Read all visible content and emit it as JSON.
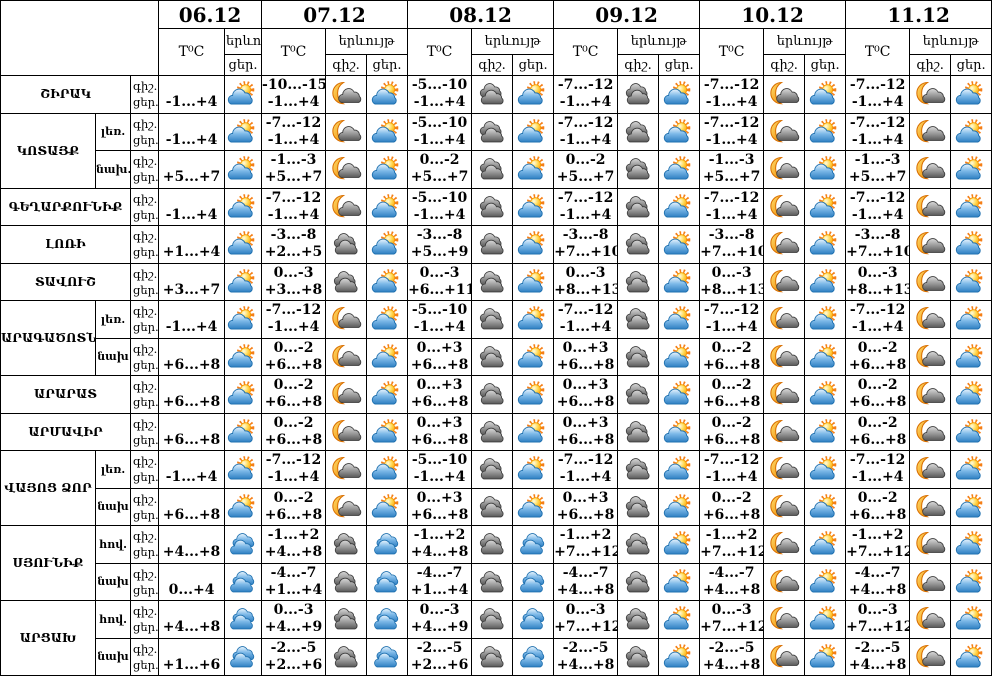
{
  "colors": {
    "border": "#000000",
    "background": "#ffffff",
    "sun": "#ffa018",
    "sun_rays": "#f57f17",
    "moon": "#f5a623",
    "cloud_blue": "#4d9bd5",
    "cloud_blue_outline": "#1d6fae",
    "cloud_gray": "#8c8c8c",
    "cloud_gray_outline": "#3a3a3a"
  },
  "icons": {
    "sun-cloud": "sun with blue cloud (partly cloudy day)",
    "moon-cloud": "crescent moon with dark cloud (partly cloudy night)",
    "clouds-gray": "two gray clouds (cloudy night)",
    "clouds-blue": "two blue clouds (cloudy day)"
  },
  "header": {
    "dates": [
      "06.12",
      "07.12",
      "08.12",
      "09.12",
      "10.12",
      "11.12"
    ],
    "temp_label": "T⁰C",
    "phenomenon_label": "երևույթ",
    "night_abbr": "գիշ.",
    "day_abbr": "ցեր."
  },
  "row_labels": {
    "night": "գիշ.",
    "day": "ցեր."
  },
  "regions": [
    {
      "name": "ՇԻՐԱԿ",
      "rows": [
        {
          "zone": null,
          "cells": [
            {
              "day_temp": "-1...+4",
              "day_icon": "sun-cloud"
            },
            {
              "night_temp": "-10...-15",
              "day_temp": "-1...+4",
              "night_icon": "moon-cloud",
              "day_icon": "sun-cloud"
            },
            {
              "night_temp": "-5...-10",
              "day_temp": "-1...+4",
              "night_icon": "clouds-gray",
              "day_icon": "sun-cloud"
            },
            {
              "night_temp": "-7...-12",
              "day_temp": "-1...+4",
              "night_icon": "clouds-gray",
              "day_icon": "sun-cloud"
            },
            {
              "night_temp": "-7...-12",
              "day_temp": "-1...+4",
              "night_icon": "moon-cloud",
              "day_icon": "sun-cloud"
            },
            {
              "night_temp": "-7...-12",
              "day_temp": "-1...+4",
              "night_icon": "moon-cloud",
              "day_icon": "sun-cloud"
            }
          ]
        }
      ]
    },
    {
      "name": "ԿՈՏԱՅՔ",
      "rows": [
        {
          "zone": "լեռ.",
          "cells": [
            {
              "day_temp": "-1...+4",
              "day_icon": "sun-cloud"
            },
            {
              "night_temp": "-7...-12",
              "day_temp": "-1...+4",
              "night_icon": "moon-cloud",
              "day_icon": "sun-cloud"
            },
            {
              "night_temp": "-5...-10",
              "day_temp": "-1...+4",
              "night_icon": "clouds-gray",
              "day_icon": "sun-cloud"
            },
            {
              "night_temp": "-7...-12",
              "day_temp": "-1...+4",
              "night_icon": "clouds-gray",
              "day_icon": "sun-cloud"
            },
            {
              "night_temp": "-7...-12",
              "day_temp": "-1...+4",
              "night_icon": "moon-cloud",
              "day_icon": "sun-cloud"
            },
            {
              "night_temp": "-7...-12",
              "day_temp": "-1...+4",
              "night_icon": "moon-cloud",
              "day_icon": "sun-cloud"
            }
          ]
        },
        {
          "zone": "նախ.",
          "cells": [
            {
              "day_temp": "+5...+7",
              "day_icon": "sun-cloud"
            },
            {
              "night_temp": "-1...-3",
              "day_temp": "+5...+7",
              "night_icon": "moon-cloud",
              "day_icon": "sun-cloud"
            },
            {
              "night_temp": "0...-2",
              "day_temp": "+5...+7",
              "night_icon": "clouds-gray",
              "day_icon": "sun-cloud"
            },
            {
              "night_temp": "0...-2",
              "day_temp": "+5...+7",
              "night_icon": "clouds-gray",
              "day_icon": "sun-cloud"
            },
            {
              "night_temp": "-1...-3",
              "day_temp": "+5...+7",
              "night_icon": "moon-cloud",
              "day_icon": "sun-cloud"
            },
            {
              "night_temp": "-1...-3",
              "day_temp": "+5...+7",
              "night_icon": "moon-cloud",
              "day_icon": "sun-cloud"
            }
          ]
        }
      ]
    },
    {
      "name": "ԳԵՂԱՐՔՈՒՆԻՔ",
      "rows": [
        {
          "zone": null,
          "cells": [
            {
              "day_temp": "-1...+4",
              "day_icon": "sun-cloud"
            },
            {
              "night_temp": "-7...-12",
              "day_temp": "-1...+4",
              "night_icon": "moon-cloud",
              "day_icon": "sun-cloud"
            },
            {
              "night_temp": "-5...-10",
              "day_temp": "-1...+4",
              "night_icon": "clouds-gray",
              "day_icon": "sun-cloud"
            },
            {
              "night_temp": "-7...-12",
              "day_temp": "-1...+4",
              "night_icon": "clouds-gray",
              "day_icon": "sun-cloud"
            },
            {
              "night_temp": "-7...-12",
              "day_temp": "-1...+4",
              "night_icon": "moon-cloud",
              "day_icon": "sun-cloud"
            },
            {
              "night_temp": "-7...-12",
              "day_temp": "-1...+4",
              "night_icon": "moon-cloud",
              "day_icon": "sun-cloud"
            }
          ]
        }
      ]
    },
    {
      "name": "ԼՈՌԻ",
      "rows": [
        {
          "zone": null,
          "cells": [
            {
              "day_temp": "+1...+4",
              "day_icon": "sun-cloud"
            },
            {
              "night_temp": "-3...-8",
              "day_temp": "+2...+5",
              "night_icon": "clouds-gray",
              "day_icon": "sun-cloud"
            },
            {
              "night_temp": "-3...-8",
              "day_temp": "+5...+9",
              "night_icon": "clouds-gray",
              "day_icon": "sun-cloud"
            },
            {
              "night_temp": "-3...-8",
              "day_temp": "+7...+10",
              "night_icon": "clouds-gray",
              "day_icon": "sun-cloud"
            },
            {
              "night_temp": "-3...-8",
              "day_temp": "+7...+10",
              "night_icon": "moon-cloud",
              "day_icon": "sun-cloud"
            },
            {
              "night_temp": "-3...-8",
              "day_temp": "+7...+10",
              "night_icon": "moon-cloud",
              "day_icon": "sun-cloud"
            }
          ]
        }
      ]
    },
    {
      "name": "ՏԱՎՈՒՇ",
      "rows": [
        {
          "zone": null,
          "cells": [
            {
              "day_temp": "+3...+7",
              "day_icon": "sun-cloud"
            },
            {
              "night_temp": "0...-3",
              "day_temp": "+3...+8",
              "night_icon": "clouds-gray",
              "day_icon": "sun-cloud"
            },
            {
              "night_temp": "0...-3",
              "day_temp": "+6...+11",
              "night_icon": "clouds-gray",
              "day_icon": "sun-cloud"
            },
            {
              "night_temp": "0...-3",
              "day_temp": "+8...+13",
              "night_icon": "clouds-gray",
              "day_icon": "sun-cloud"
            },
            {
              "night_temp": "0...-3",
              "day_temp": "+8...+13",
              "night_icon": "moon-cloud",
              "day_icon": "sun-cloud"
            },
            {
              "night_temp": "0...-3",
              "day_temp": "+8...+13",
              "night_icon": "moon-cloud",
              "day_icon": "sun-cloud"
            }
          ]
        }
      ]
    },
    {
      "name": "ԱՐԱԳԱԾՈՏՆ",
      "rows": [
        {
          "zone": "լեռ.",
          "cells": [
            {
              "day_temp": "-1...+4",
              "day_icon": "sun-cloud"
            },
            {
              "night_temp": "-7...-12",
              "day_temp": "-1...+4",
              "night_icon": "moon-cloud",
              "day_icon": "sun-cloud"
            },
            {
              "night_temp": "-5...-10",
              "day_temp": "-1...+4",
              "night_icon": "clouds-gray",
              "day_icon": "sun-cloud"
            },
            {
              "night_temp": "-7...-12",
              "day_temp": "-1...+4",
              "night_icon": "clouds-gray",
              "day_icon": "sun-cloud"
            },
            {
              "night_temp": "-7...-12",
              "day_temp": "-1...+4",
              "night_icon": "moon-cloud",
              "day_icon": "sun-cloud"
            },
            {
              "night_temp": "-7...-12",
              "day_temp": "-1...+4",
              "night_icon": "moon-cloud",
              "day_icon": "sun-cloud"
            }
          ]
        },
        {
          "zone": "նախ",
          "cells": [
            {
              "day_temp": "+6...+8",
              "day_icon": "sun-cloud"
            },
            {
              "night_temp": "0...-2",
              "day_temp": "+6...+8",
              "night_icon": "moon-cloud",
              "day_icon": "sun-cloud"
            },
            {
              "night_temp": "0...+3",
              "day_temp": "+6...+8",
              "night_icon": "clouds-gray",
              "day_icon": "sun-cloud"
            },
            {
              "night_temp": "0...+3",
              "day_temp": "+6...+8",
              "night_icon": "clouds-gray",
              "day_icon": "sun-cloud"
            },
            {
              "night_temp": "0...-2",
              "day_temp": "+6...+8",
              "night_icon": "moon-cloud",
              "day_icon": "sun-cloud"
            },
            {
              "night_temp": "0...-2",
              "day_temp": "+6...+8",
              "night_icon": "moon-cloud",
              "day_icon": "sun-cloud"
            }
          ]
        }
      ]
    },
    {
      "name": "ԱՐԱՐԱՏ",
      "rows": [
        {
          "zone": null,
          "cells": [
            {
              "day_temp": "+6...+8",
              "day_icon": "sun-cloud"
            },
            {
              "night_temp": "0...-2",
              "day_temp": "+6...+8",
              "night_icon": "moon-cloud",
              "day_icon": "sun-cloud"
            },
            {
              "night_temp": "0...+3",
              "day_temp": "+6...+8",
              "night_icon": "clouds-gray",
              "day_icon": "sun-cloud"
            },
            {
              "night_temp": "0...+3",
              "day_temp": "+6...+8",
              "night_icon": "clouds-gray",
              "day_icon": "sun-cloud"
            },
            {
              "night_temp": "0...-2",
              "day_temp": "+6...+8",
              "night_icon": "moon-cloud",
              "day_icon": "sun-cloud"
            },
            {
              "night_temp": "0...-2",
              "day_temp": "+6...+8",
              "night_icon": "moon-cloud",
              "day_icon": "sun-cloud"
            }
          ]
        }
      ]
    },
    {
      "name": "ԱՐՄԱՎԻՐ",
      "rows": [
        {
          "zone": null,
          "cells": [
            {
              "day_temp": "+6...+8",
              "day_icon": "sun-cloud"
            },
            {
              "night_temp": "0...-2",
              "day_temp": "+6...+8",
              "night_icon": "moon-cloud",
              "day_icon": "sun-cloud"
            },
            {
              "night_temp": "0...+3",
              "day_temp": "+6...+8",
              "night_icon": "clouds-gray",
              "day_icon": "sun-cloud"
            },
            {
              "night_temp": "0...+3",
              "day_temp": "+6...+8",
              "night_icon": "clouds-gray",
              "day_icon": "sun-cloud"
            },
            {
              "night_temp": "0...-2",
              "day_temp": "+6...+8",
              "night_icon": "moon-cloud",
              "day_icon": "sun-cloud"
            },
            {
              "night_temp": "0...-2",
              "day_temp": "+6...+8",
              "night_icon": "moon-cloud",
              "day_icon": "sun-cloud"
            }
          ]
        }
      ]
    },
    {
      "name": "ՎԱՅՈՑ ՁՈՐ",
      "rows": [
        {
          "zone": "լեռ.",
          "cells": [
            {
              "day_temp": "-1...+4",
              "day_icon": "sun-cloud"
            },
            {
              "night_temp": "-7...-12",
              "day_temp": "-1...+4",
              "night_icon": "moon-cloud",
              "day_icon": "sun-cloud"
            },
            {
              "night_temp": "-5...-10",
              "day_temp": "-1...+4",
              "night_icon": "clouds-gray",
              "day_icon": "sun-cloud"
            },
            {
              "night_temp": "-7...-12",
              "day_temp": "-1...+4",
              "night_icon": "clouds-gray",
              "day_icon": "sun-cloud"
            },
            {
              "night_temp": "-7...-12",
              "day_temp": "-1...+4",
              "night_icon": "moon-cloud",
              "day_icon": "sun-cloud"
            },
            {
              "night_temp": "-7...-12",
              "day_temp": "-1...+4",
              "night_icon": "moon-cloud",
              "day_icon": "sun-cloud"
            }
          ]
        },
        {
          "zone": "նախ",
          "cells": [
            {
              "day_temp": "+6...+8",
              "day_icon": "sun-cloud"
            },
            {
              "night_temp": "0...-2",
              "day_temp": "+6...+8",
              "night_icon": "moon-cloud",
              "day_icon": "sun-cloud"
            },
            {
              "night_temp": "0...+3",
              "day_temp": "+6...+8",
              "night_icon": "clouds-gray",
              "day_icon": "sun-cloud"
            },
            {
              "night_temp": "0...+3",
              "day_temp": "+6...+8",
              "night_icon": "clouds-gray",
              "day_icon": "sun-cloud"
            },
            {
              "night_temp": "0...-2",
              "day_temp": "+6...+8",
              "night_icon": "moon-cloud",
              "day_icon": "sun-cloud"
            },
            {
              "night_temp": "0...-2",
              "day_temp": "+6...+8",
              "night_icon": "moon-cloud",
              "day_icon": "sun-cloud"
            }
          ]
        }
      ]
    },
    {
      "name": "ՍՅՈՒՆԻՔ",
      "rows": [
        {
          "zone": "հով.",
          "cells": [
            {
              "day_temp": "+4...+8",
              "day_icon": "clouds-blue"
            },
            {
              "night_temp": "-1...+2",
              "day_temp": "+4...+8",
              "night_icon": "clouds-gray",
              "day_icon": "clouds-blue"
            },
            {
              "night_temp": "-1...+2",
              "day_temp": "+4...+8",
              "night_icon": "clouds-gray",
              "day_icon": "clouds-blue"
            },
            {
              "night_temp": "-1...+2",
              "day_temp": "+7...+12",
              "night_icon": "clouds-gray",
              "day_icon": "sun-cloud"
            },
            {
              "night_temp": "-1...+2",
              "day_temp": "+7...+12",
              "night_icon": "moon-cloud",
              "day_icon": "sun-cloud"
            },
            {
              "night_temp": "-1...+2",
              "day_temp": "+7...+12",
              "night_icon": "moon-cloud",
              "day_icon": "sun-cloud"
            }
          ]
        },
        {
          "zone": "նախ",
          "cells": [
            {
              "day_temp": "0...+4",
              "day_icon": "clouds-blue"
            },
            {
              "night_temp": "-4...-7",
              "day_temp": "+1...+4",
              "night_icon": "clouds-gray",
              "day_icon": "clouds-blue"
            },
            {
              "night_temp": "-4...-7",
              "day_temp": "+1...+4",
              "night_icon": "clouds-gray",
              "day_icon": "clouds-blue"
            },
            {
              "night_temp": "-4...-7",
              "day_temp": "+4...+8",
              "night_icon": "clouds-gray",
              "day_icon": "sun-cloud"
            },
            {
              "night_temp": "-4...-7",
              "day_temp": "+4...+8",
              "night_icon": "moon-cloud",
              "day_icon": "sun-cloud"
            },
            {
              "night_temp": "-4...-7",
              "day_temp": "+4...+8",
              "night_icon": "moon-cloud",
              "day_icon": "sun-cloud"
            }
          ]
        }
      ]
    },
    {
      "name": "ԱՐՑԱԽ",
      "rows": [
        {
          "zone": "հով.",
          "cells": [
            {
              "day_temp": "+4...+8",
              "day_icon": "clouds-blue"
            },
            {
              "night_temp": "0...-3",
              "day_temp": "+4...+9",
              "night_icon": "clouds-gray",
              "day_icon": "clouds-blue"
            },
            {
              "night_temp": "0...-3",
              "day_temp": "+4...+9",
              "night_icon": "clouds-gray",
              "day_icon": "clouds-blue"
            },
            {
              "night_temp": "0...-3",
              "day_temp": "+7...+12",
              "night_icon": "clouds-gray",
              "day_icon": "sun-cloud"
            },
            {
              "night_temp": "0...-3",
              "day_temp": "+7...+12",
              "night_icon": "moon-cloud",
              "day_icon": "sun-cloud"
            },
            {
              "night_temp": "0...-3",
              "day_temp": "+7...+12",
              "night_icon": "moon-cloud",
              "day_icon": "sun-cloud"
            }
          ]
        },
        {
          "zone": "նախ",
          "cells": [
            {
              "day_temp": "+1...+6",
              "day_icon": "clouds-blue"
            },
            {
              "night_temp": "-2...-5",
              "day_temp": "+2...+6",
              "night_icon": "clouds-gray",
              "day_icon": "clouds-blue"
            },
            {
              "night_temp": "-2...-5",
              "day_temp": "+2...+6",
              "night_icon": "clouds-gray",
              "day_icon": "clouds-blue"
            },
            {
              "night_temp": "-2...-5",
              "day_temp": "+4...+8",
              "night_icon": "clouds-gray",
              "day_icon": "sun-cloud"
            },
            {
              "night_temp": "-2...-5",
              "day_temp": "+4...+8",
              "night_icon": "moon-cloud",
              "day_icon": "sun-cloud"
            },
            {
              "night_temp": "-2...-5",
              "day_temp": "+4...+8",
              "night_icon": "moon-cloud",
              "day_icon": "sun-cloud"
            }
          ]
        }
      ]
    }
  ]
}
